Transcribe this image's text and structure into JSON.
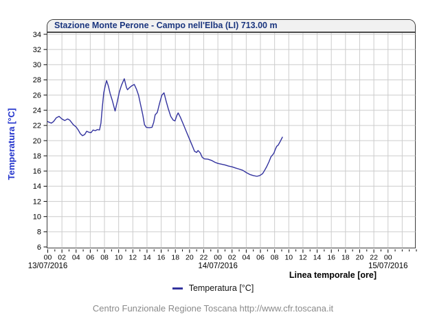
{
  "title": "Stazione Monte Perone - Campo nell'Elba (LI) 713.00 m",
  "footer": "Centro Funzionale Regione Toscana http://www.cfr.toscana.it",
  "legend": {
    "label": "Temperatura [°C]"
  },
  "colors": {
    "curve": "#32329e",
    "grid": "#cccccc",
    "title_text": "#1a357e",
    "y_title_text": "#2233cc",
    "footer_text": "#8a8a8a",
    "box_border": "#3a3a3a",
    "title_bar_bg": "#f1f1f1",
    "tick_label": "#000000"
  },
  "chart_data": {
    "type": "line",
    "title": "Stazione Monte Perone - Campo nell'Elba (LI) 713.00 m",
    "xlabel": "Linea temporale [ore]",
    "ylabel": "Temperatura [°C]",
    "ylim": [
      6,
      34
    ],
    "xlim_hours": [
      0,
      52
    ],
    "grid": true,
    "legend_position": "bottom",
    "y_ticks": [
      6,
      8,
      10,
      12,
      14,
      16,
      18,
      20,
      22,
      24,
      26,
      28,
      30,
      32,
      34
    ],
    "y_tick_labels": [
      "6",
      "8",
      "10",
      "12",
      "14",
      "16",
      "18",
      "20",
      "22",
      "24",
      "26",
      "28",
      "30",
      "32",
      "34"
    ],
    "x_major_tick_step_hours": 2,
    "x_minor_tick_step_hours": 1,
    "x_tick_hours": [
      0,
      2,
      4,
      6,
      8,
      10,
      12,
      14,
      16,
      18,
      20,
      22,
      24,
      26,
      28,
      30,
      32,
      34,
      36,
      38,
      40,
      42,
      44,
      46,
      48
    ],
    "x_tick_labels": [
      "00",
      "02",
      "04",
      "06",
      "08",
      "10",
      "12",
      "14",
      "16",
      "18",
      "20",
      "22",
      "00",
      "02",
      "04",
      "06",
      "08",
      "10",
      "12",
      "14",
      "16",
      "18",
      "20",
      "22",
      "00"
    ],
    "dates": [
      {
        "label": "13/07/2016",
        "hour": 0
      },
      {
        "label": "14/07/2016",
        "hour": 24
      },
      {
        "label": "15/07/2016",
        "hour": 48
      }
    ],
    "series": [
      {
        "name": "Temperatura [°C]",
        "color": "#32329e",
        "points": [
          [
            0,
            22.5
          ],
          [
            0.5,
            22.3
          ],
          [
            0.8,
            22.5
          ],
          [
            1.2,
            23.0
          ],
          [
            1.6,
            23.2
          ],
          [
            2.0,
            22.85
          ],
          [
            2.4,
            22.65
          ],
          [
            2.8,
            22.85
          ],
          [
            3.1,
            22.7
          ],
          [
            3.6,
            22.1
          ],
          [
            4.0,
            21.8
          ],
          [
            4.3,
            21.4
          ],
          [
            4.6,
            20.9
          ],
          [
            4.9,
            20.65
          ],
          [
            5.2,
            20.8
          ],
          [
            5.5,
            21.25
          ],
          [
            5.8,
            21.1
          ],
          [
            6.1,
            21.05
          ],
          [
            6.4,
            21.4
          ],
          [
            6.7,
            21.3
          ],
          [
            7.0,
            21.45
          ],
          [
            7.3,
            21.4
          ],
          [
            7.5,
            22.3
          ],
          [
            7.7,
            24.4
          ],
          [
            7.9,
            26.3
          ],
          [
            8.1,
            27.2
          ],
          [
            8.3,
            27.9
          ],
          [
            8.55,
            27.2
          ],
          [
            8.8,
            26.2
          ],
          [
            9.1,
            25.3
          ],
          [
            9.5,
            23.9
          ],
          [
            9.8,
            25.1
          ],
          [
            10.1,
            26.4
          ],
          [
            10.4,
            27.3
          ],
          [
            10.8,
            28.15
          ],
          [
            11.1,
            27.0
          ],
          [
            11.25,
            26.7
          ],
          [
            11.5,
            26.95
          ],
          [
            11.9,
            27.25
          ],
          [
            12.2,
            27.4
          ],
          [
            12.5,
            26.8
          ],
          [
            12.8,
            26.0
          ],
          [
            13.1,
            24.7
          ],
          [
            13.4,
            23.4
          ],
          [
            13.65,
            22.1
          ],
          [
            13.9,
            21.75
          ],
          [
            14.3,
            21.7
          ],
          [
            14.7,
            21.75
          ],
          [
            14.95,
            22.4
          ],
          [
            15.15,
            23.4
          ],
          [
            15.45,
            23.7
          ],
          [
            15.8,
            25.0
          ],
          [
            16.1,
            26.0
          ],
          [
            16.4,
            26.3
          ],
          [
            16.7,
            25.2
          ],
          [
            17.0,
            24.2
          ],
          [
            17.35,
            23.2
          ],
          [
            17.7,
            22.7
          ],
          [
            17.95,
            22.6
          ],
          [
            18.2,
            23.3
          ],
          [
            18.4,
            23.65
          ],
          [
            18.7,
            23.1
          ],
          [
            19.1,
            22.2
          ],
          [
            19.5,
            21.3
          ],
          [
            20.0,
            20.2
          ],
          [
            20.4,
            19.3
          ],
          [
            20.7,
            18.6
          ],
          [
            21.0,
            18.45
          ],
          [
            21.2,
            18.7
          ],
          [
            21.5,
            18.4
          ],
          [
            21.8,
            17.8
          ],
          [
            22.1,
            17.6
          ],
          [
            22.6,
            17.55
          ],
          [
            23.1,
            17.4
          ],
          [
            23.6,
            17.15
          ],
          [
            24.0,
            17.0
          ],
          [
            24.5,
            16.9
          ],
          [
            25.0,
            16.8
          ],
          [
            25.5,
            16.65
          ],
          [
            26.0,
            16.55
          ],
          [
            26.5,
            16.4
          ],
          [
            27.0,
            16.25
          ],
          [
            27.5,
            16.1
          ],
          [
            28.0,
            15.8
          ],
          [
            28.5,
            15.55
          ],
          [
            29.0,
            15.4
          ],
          [
            29.5,
            15.3
          ],
          [
            29.9,
            15.4
          ],
          [
            30.3,
            15.65
          ],
          [
            30.6,
            16.1
          ],
          [
            30.9,
            16.6
          ],
          [
            31.2,
            17.2
          ],
          [
            31.5,
            17.9
          ],
          [
            31.7,
            18.1
          ],
          [
            31.9,
            18.35
          ],
          [
            32.1,
            18.85
          ],
          [
            32.3,
            19.25
          ],
          [
            32.5,
            19.4
          ],
          [
            32.8,
            19.9
          ],
          [
            33.1,
            20.45
          ]
        ]
      }
    ]
  }
}
